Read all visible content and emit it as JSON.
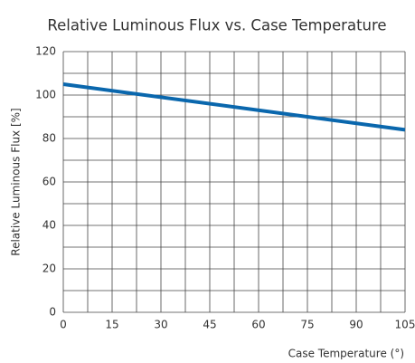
{
  "chart_data": {
    "type": "line",
    "title": "Relative Luminous Flux vs. Case Temperature",
    "xlabel": "Case Temperature (°)",
    "ylabel": "Relative Luminous Flux [%]",
    "x": [
      0,
      105
    ],
    "series": [
      {
        "name": "Relative Luminous Flux",
        "color": "#0a67ad",
        "values": [
          105,
          84
        ]
      }
    ],
    "xlim": [
      0,
      105
    ],
    "xticks": [
      0,
      15,
      30,
      45,
      60,
      75,
      90,
      105
    ],
    "minor_xticks": [
      7.5,
      22.5,
      37.5,
      52.5,
      67.5,
      82.5,
      97.5
    ],
    "ylim": [
      0,
      120
    ],
    "yticks": [
      0,
      20,
      40,
      60,
      80,
      100,
      120
    ],
    "minor_yticks": [
      10,
      30,
      50,
      70,
      90,
      110
    ],
    "grid": true
  }
}
